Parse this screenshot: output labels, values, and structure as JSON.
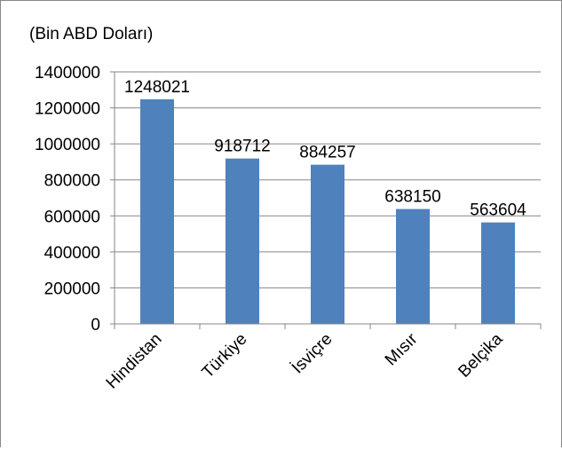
{
  "chart_data": {
    "type": "bar",
    "title": "",
    "unit_label": "(Bin ABD Doları)",
    "xlabel": "",
    "ylabel": "",
    "categories": [
      "Hindistan",
      "Türkiye",
      "İsviçre",
      "Mısır",
      "Belçika"
    ],
    "values": [
      1248021,
      918712,
      884257,
      638150,
      563604
    ],
    "data_labels": [
      "1248021",
      "918712",
      "884257",
      "638150",
      "563604"
    ],
    "ylim": [
      0,
      1400000
    ],
    "yticks": [
      "0",
      "200000",
      "400000",
      "600000",
      "800000",
      "1000000",
      "1200000",
      "1400000"
    ],
    "grid": true,
    "legend": "none",
    "bar_color": "#4F81BD",
    "grid_color": "#868686"
  }
}
